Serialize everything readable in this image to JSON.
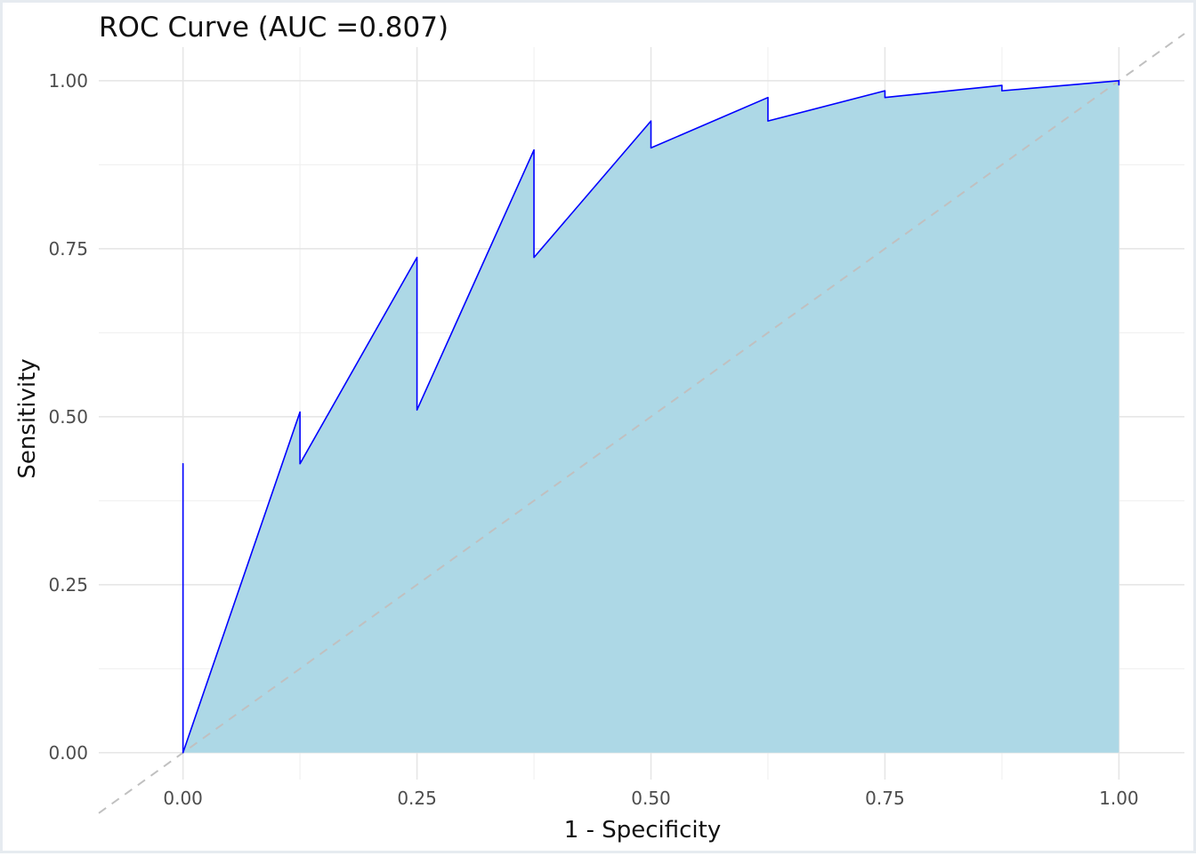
{
  "chart_data": {
    "type": "area",
    "title": "ROC Curve (AUC =0.807)",
    "xlabel": "1 - Specificity",
    "ylabel": "Sensitivity",
    "xlim": [
      -0.09,
      1.07
    ],
    "ylim": [
      -0.04,
      1.05
    ],
    "x_ticks": [
      0,
      0.25,
      0.5,
      0.75,
      1
    ],
    "y_ticks": [
      0,
      0.25,
      0.5,
      0.75,
      1
    ],
    "x_tick_labels": [
      "0.00",
      "0.25",
      "0.50",
      "0.75",
      "1.00"
    ],
    "y_tick_labels": [
      "0.00",
      "0.25",
      "0.50",
      "0.75",
      "1.00"
    ],
    "grid": true,
    "legend": "none",
    "colors": {
      "fill": "#add8e6",
      "line": "#0000ff",
      "diagonal": "#c0c0c0"
    },
    "series": [
      {
        "x": [
          0,
          0,
          0,
          0.125,
          0.125,
          0.25,
          0.25,
          0.375,
          0.375,
          0.5,
          0.5,
          0.625,
          0.625,
          0.75,
          0.75,
          0.875,
          0.875,
          1,
          1
        ],
        "y": [
          0,
          0.43,
          0,
          0.507,
          0.43,
          0.737,
          0.51,
          0.897,
          0.737,
          0.94,
          0.9,
          0.975,
          0.94,
          0.985,
          0.975,
          0.993,
          0.985,
          1,
          0.993
        ]
      }
    ],
    "diagonal": {
      "x": [
        -0.09,
        1.07
      ],
      "y": [
        -0.09,
        1.07
      ]
    }
  }
}
